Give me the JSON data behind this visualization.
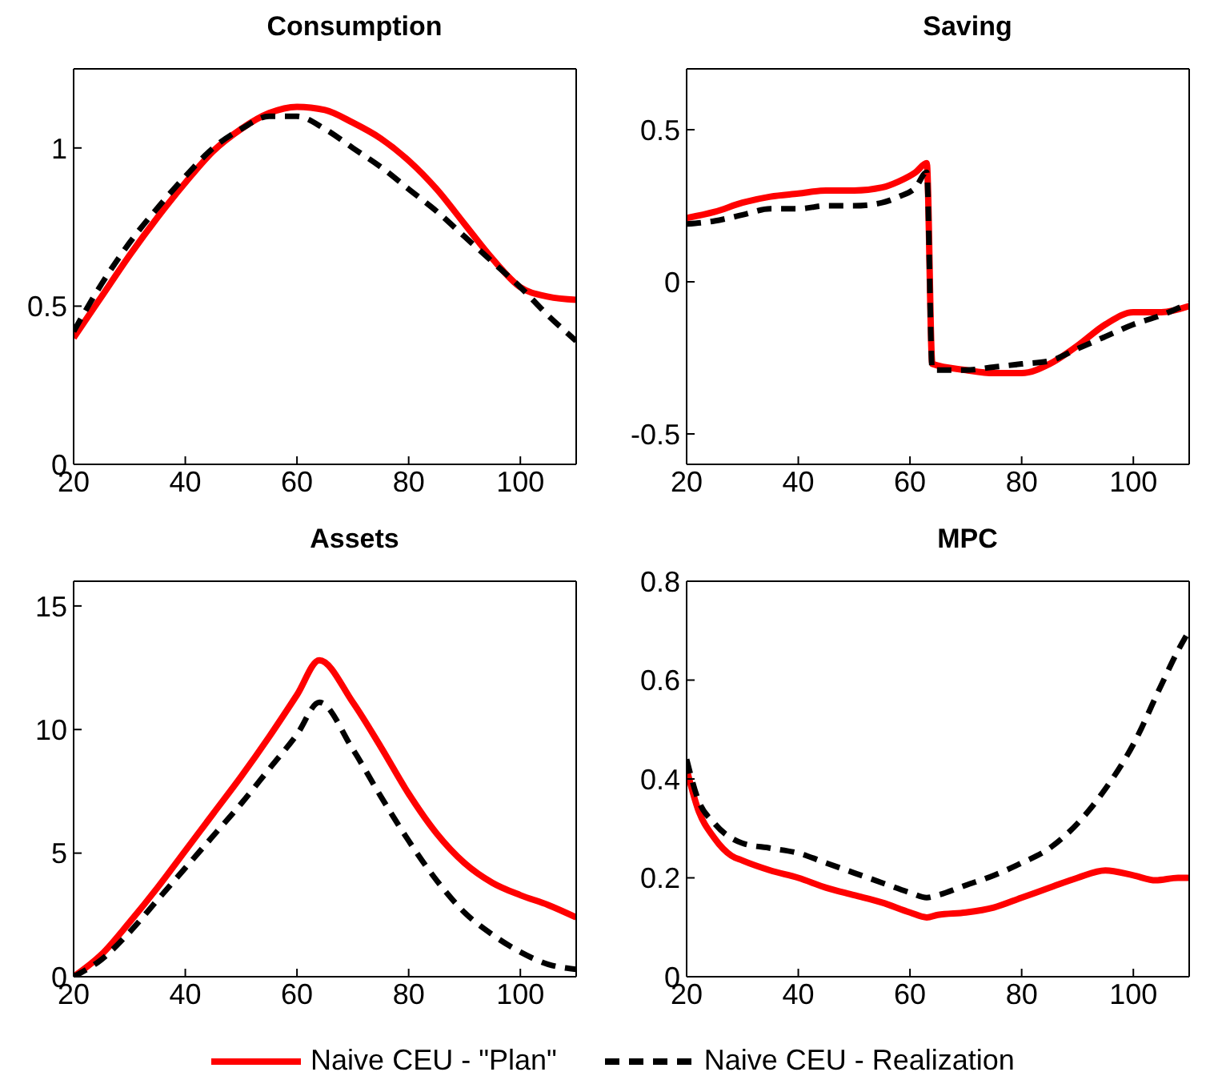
{
  "chart_data": [
    {
      "type": "line",
      "title": "Consumption",
      "xlim": [
        20,
        110
      ],
      "xticks": [
        20,
        40,
        60,
        80,
        100
      ],
      "ylim": [
        0,
        1.25
      ],
      "yticks": [
        0,
        0.5,
        1
      ],
      "legend": "bottom",
      "series": [
        {
          "name": "Naive CEU - \"Plan\"",
          "color": "#ff0000",
          "line_style": "solid",
          "x": [
            20,
            25,
            30,
            35,
            40,
            45,
            50,
            55,
            60,
            65,
            70,
            75,
            80,
            85,
            90,
            95,
            100,
            105,
            110
          ],
          "values": [
            0.4,
            0.53,
            0.66,
            0.78,
            0.89,
            0.99,
            1.06,
            1.11,
            1.13,
            1.12,
            1.08,
            1.03,
            0.96,
            0.87,
            0.76,
            0.65,
            0.56,
            0.53,
            0.52
          ]
        },
        {
          "name": "Naive CEU - Realization",
          "color": "#000000",
          "line_style": "dashed",
          "x": [
            20,
            25,
            30,
            35,
            40,
            45,
            50,
            55,
            60,
            65,
            70,
            75,
            80,
            85,
            90,
            95,
            100,
            105,
            110
          ],
          "values": [
            0.42,
            0.57,
            0.7,
            0.81,
            0.91,
            1.0,
            1.06,
            1.1,
            1.1,
            1.06,
            1.0,
            0.94,
            0.87,
            0.8,
            0.72,
            0.64,
            0.56,
            0.47,
            0.39
          ]
        }
      ]
    },
    {
      "type": "line",
      "title": "Saving",
      "xlim": [
        20,
        110
      ],
      "xticks": [
        20,
        40,
        60,
        80,
        100
      ],
      "ylim": [
        -0.6,
        0.7
      ],
      "yticks": [
        -0.5,
        0,
        0.5
      ],
      "series": [
        {
          "color": "#ff0000",
          "line_style": "solid",
          "x": [
            20,
            25,
            30,
            35,
            40,
            45,
            50,
            55,
            58,
            61,
            63,
            64,
            70,
            75,
            80,
            85,
            90,
            95,
            100,
            105,
            110
          ],
          "values": [
            0.21,
            0.23,
            0.26,
            0.28,
            0.29,
            0.3,
            0.3,
            0.31,
            0.33,
            0.36,
            0.39,
            -0.27,
            -0.29,
            -0.3,
            -0.3,
            -0.27,
            -0.21,
            -0.14,
            -0.1,
            -0.1,
            -0.08
          ]
        },
        {
          "color": "#000000",
          "line_style": "dashed",
          "x": [
            20,
            25,
            30,
            35,
            40,
            45,
            50,
            55,
            58,
            61,
            63,
            64,
            70,
            75,
            80,
            85,
            90,
            95,
            100,
            105,
            110
          ],
          "values": [
            0.19,
            0.2,
            0.22,
            0.24,
            0.24,
            0.25,
            0.25,
            0.26,
            0.28,
            0.31,
            0.36,
            -0.29,
            -0.29,
            -0.28,
            -0.27,
            -0.26,
            -0.22,
            -0.18,
            -0.14,
            -0.11,
            -0.07
          ]
        }
      ]
    },
    {
      "type": "line",
      "title": "Assets",
      "xlim": [
        20,
        110
      ],
      "xticks": [
        20,
        40,
        60,
        80,
        100
      ],
      "ylim": [
        0,
        16
      ],
      "yticks": [
        0,
        5,
        10,
        15
      ],
      "series": [
        {
          "color": "#ff0000",
          "line_style": "solid",
          "x": [
            20,
            25,
            30,
            35,
            40,
            45,
            50,
            55,
            60,
            64,
            70,
            75,
            80,
            85,
            90,
            95,
            100,
            105,
            110
          ],
          "values": [
            0,
            0.9,
            2.2,
            3.6,
            5.1,
            6.6,
            8.1,
            9.7,
            11.4,
            12.8,
            11.1,
            9.3,
            7.4,
            5.8,
            4.6,
            3.8,
            3.3,
            2.9,
            2.4
          ]
        },
        {
          "color": "#000000",
          "line_style": "dashed",
          "x": [
            20,
            25,
            30,
            35,
            40,
            45,
            50,
            55,
            60,
            64,
            70,
            75,
            80,
            85,
            90,
            95,
            100,
            105,
            110
          ],
          "values": [
            0,
            0.7,
            1.8,
            3.1,
            4.4,
            5.7,
            7.0,
            8.4,
            9.8,
            11.1,
            9.2,
            7.3,
            5.5,
            3.9,
            2.6,
            1.7,
            1.0,
            0.5,
            0.3
          ]
        }
      ]
    },
    {
      "type": "line",
      "title": "MPC",
      "xlim": [
        20,
        110
      ],
      "xticks": [
        20,
        40,
        60,
        80,
        100
      ],
      "ylim": [
        0,
        0.8
      ],
      "yticks": [
        0,
        0.2,
        0.4,
        0.6,
        0.8
      ],
      "series": [
        {
          "color": "#ff0000",
          "line_style": "solid",
          "x": [
            20,
            22,
            25,
            28,
            30,
            35,
            40,
            45,
            50,
            55,
            60,
            63,
            65,
            70,
            75,
            80,
            85,
            90,
            95,
            100,
            104,
            108,
            110
          ],
          "values": [
            0.42,
            0.34,
            0.28,
            0.245,
            0.235,
            0.215,
            0.2,
            0.18,
            0.165,
            0.15,
            0.13,
            0.12,
            0.125,
            0.13,
            0.14,
            0.16,
            0.18,
            0.2,
            0.215,
            0.205,
            0.195,
            0.2,
            0.2
          ]
        },
        {
          "color": "#000000",
          "line_style": "dashed",
          "x": [
            20,
            22,
            25,
            30,
            35,
            40,
            45,
            50,
            55,
            60,
            63,
            65,
            70,
            75,
            80,
            85,
            90,
            95,
            100,
            105,
            108,
            110
          ],
          "values": [
            0.44,
            0.36,
            0.31,
            0.27,
            0.26,
            0.25,
            0.23,
            0.21,
            0.19,
            0.17,
            0.16,
            0.165,
            0.185,
            0.205,
            0.23,
            0.26,
            0.31,
            0.38,
            0.47,
            0.59,
            0.66,
            0.7
          ]
        }
      ]
    }
  ]
}
